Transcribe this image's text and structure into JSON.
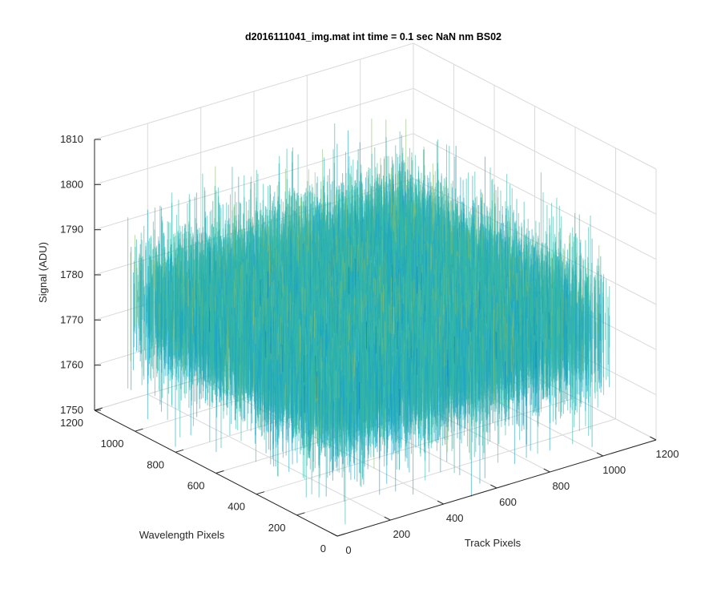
{
  "chart_data": {
    "type": "surface",
    "title": "d2016111041_img.mat int time = 0.1 sec  NaN nm BS02",
    "xlabel": "Track Pixels",
    "ylabel": "Wavelength Pixels",
    "zlabel": "Signal (ADU)",
    "xlim": [
      0,
      1200
    ],
    "ylim": [
      0,
      1200
    ],
    "zlim": [
      1750,
      1810
    ],
    "x_ticks": [
      "0",
      "200",
      "400",
      "600",
      "800",
      "1000",
      "1200"
    ],
    "y_ticks": [
      "0",
      "200",
      "400",
      "600",
      "800",
      "1000",
      "1200"
    ],
    "z_ticks": [
      "1750",
      "1760",
      "1770",
      "1780",
      "1790",
      "1800",
      "1810"
    ],
    "data_extent": {
      "x": [
        0,
        1024
      ],
      "y": [
        0,
        1024
      ]
    },
    "signal_mean": 1778,
    "signal_range": [
      1760,
      1800
    ],
    "colormap": [
      "#0072bd",
      "#1ba3c6",
      "#35b7a8",
      "#8cc06b",
      "#e6c34a"
    ],
    "grid": true
  }
}
